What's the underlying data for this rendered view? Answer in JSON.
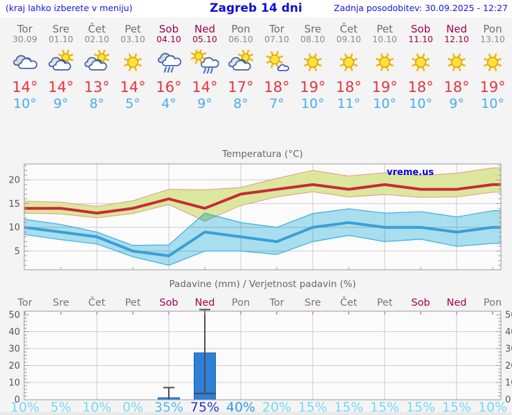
{
  "header": {
    "left_note": "(kraj lahko izberete v meniju)",
    "title": "Zagreb 14 dni",
    "updated": "Zadnja posodobitev: 30.09.2025 - 12:27"
  },
  "colors": {
    "weekend": "#a3024a",
    "weekday": "#6e6e6e",
    "high_temp": "#e4353f",
    "low_temp": "#47acee",
    "max_line": "#cb2838",
    "max_band": "#dbe79c",
    "min_line": "#399fd9",
    "min_band": "#abe2f2",
    "bar": "#2e7fd6",
    "header_blue": "#1414e0"
  },
  "days": [
    {
      "name": "Tor",
      "date": "30.09",
      "weekend": false,
      "icon": "cloudy",
      "high": "14°",
      "low": "10°",
      "prob": "10%",
      "prob_color": "#76d9f6"
    },
    {
      "name": "Sre",
      "date": "01.10",
      "weekend": false,
      "icon": "partly-cloudy",
      "high": "14°",
      "low": "9°",
      "prob": "5%",
      "prob_color": "#76d9f6"
    },
    {
      "name": "Čet",
      "date": "02.10",
      "weekend": false,
      "icon": "partly-cloudy",
      "high": "13°",
      "low": "8°",
      "prob": "10%",
      "prob_color": "#76d9f6"
    },
    {
      "name": "Pet",
      "date": "03.10",
      "weekend": false,
      "icon": "sunny",
      "high": "14°",
      "low": "5°",
      "prob": "0%",
      "prob_color": "#76d9f6"
    },
    {
      "name": "Sob",
      "date": "04.10",
      "weekend": true,
      "icon": "rain",
      "high": "16°",
      "low": "4°",
      "prob": "35%",
      "prob_color": "#4cbcee"
    },
    {
      "name": "Ned",
      "date": "05.10",
      "weekend": true,
      "icon": "sun-rain",
      "high": "14°",
      "low": "9°",
      "prob": "75%",
      "prob_color": "#2534cb"
    },
    {
      "name": "Pon",
      "date": "06.10",
      "weekend": false,
      "icon": "partly-cloudy",
      "high": "17°",
      "low": "8°",
      "prob": "40%",
      "prob_color": "#309ae4"
    },
    {
      "name": "Tor",
      "date": "07.10",
      "weekend": false,
      "icon": "mostly-sunny",
      "high": "18°",
      "low": "7°",
      "prob": "20%",
      "prob_color": "#76d9f6"
    },
    {
      "name": "Sre",
      "date": "08.10",
      "weekend": false,
      "icon": "sunny",
      "high": "19°",
      "low": "10°",
      "prob": "15%",
      "prob_color": "#76d9f6"
    },
    {
      "name": "Čet",
      "date": "09.10",
      "weekend": false,
      "icon": "sunny",
      "high": "18°",
      "low": "11°",
      "prob": "15%",
      "prob_color": "#76d9f6"
    },
    {
      "name": "Pet",
      "date": "10.10",
      "weekend": false,
      "icon": "sunny",
      "high": "19°",
      "low": "10°",
      "prob": "15%",
      "prob_color": "#76d9f6"
    },
    {
      "name": "Sob",
      "date": "11.10",
      "weekend": true,
      "icon": "sunny",
      "high": "18°",
      "low": "10°",
      "prob": "15%",
      "prob_color": "#76d9f6"
    },
    {
      "name": "Ned",
      "date": "12.10",
      "weekend": true,
      "icon": "sunny",
      "high": "18°",
      "low": "9°",
      "prob": "15%",
      "prob_color": "#76d9f6"
    },
    {
      "name": "Pon",
      "date": "13.10",
      "weekend": false,
      "icon": "sunny",
      "high": "19°",
      "low": "10°",
      "prob": "10%",
      "prob_color": "#76d9f6"
    }
  ],
  "chart_data": [
    {
      "type": "line",
      "title": "Temperatura (°C)",
      "watermark": "vreme.us",
      "categories": [
        "Tor 30.09",
        "Sre 01.10",
        "Čet 02.10",
        "Pet 03.10",
        "Sob 04.10",
        "Ned 05.10",
        "Pon 06.10",
        "Tor 07.10",
        "Sre 08.10",
        "Čet 09.10",
        "Pet 10.10",
        "Sob 11.10",
        "Ned 12.10",
        "Pon 13.10"
      ],
      "series": [
        {
          "name": "max_temp",
          "values": [
            14,
            14,
            13,
            14,
            16,
            14,
            17,
            18,
            19,
            18,
            19,
            18,
            18,
            19
          ]
        },
        {
          "name": "min_temp",
          "values": [
            10,
            9,
            8,
            5,
            4,
            9,
            8,
            7,
            10,
            11,
            10,
            10,
            9,
            10
          ]
        },
        {
          "name": "max_band_upper",
          "values": [
            15.5,
            15.3,
            14.4,
            15.6,
            18.0,
            17.9,
            18.4,
            20.3,
            22.0,
            20.8,
            21.5,
            20.9,
            21.4,
            22.5
          ]
        },
        {
          "name": "max_band_lower",
          "values": [
            13.0,
            12.8,
            12.0,
            12.9,
            14.8,
            11.3,
            14.6,
            16.4,
            17.5,
            16.4,
            16.9,
            16.3,
            16.4,
            17.4
          ]
        },
        {
          "name": "min_band_upper",
          "values": [
            11.7,
            10.6,
            9.0,
            6.2,
            6.3,
            13.0,
            11.0,
            10.0,
            12.9,
            13.9,
            13.0,
            13.3,
            12.2,
            13.5
          ]
        },
        {
          "name": "min_band_lower",
          "values": [
            8.5,
            7.4,
            6.5,
            3.8,
            2.0,
            5.0,
            5.0,
            4.3,
            7.0,
            8.3,
            7.0,
            7.5,
            6.0,
            6.6
          ]
        }
      ],
      "ylim": [
        1,
        23.3
      ],
      "yticks": [
        5,
        10,
        15,
        20
      ],
      "grid": true,
      "legend": "none"
    },
    {
      "type": "bar",
      "title": "Padavine (mm) / Verjetnost padavin (%)",
      "categories": [
        "Tor",
        "Sre",
        "Čet",
        "Pet",
        "Sob",
        "Ned",
        "Pon",
        "Tor",
        "Sre",
        "Čet",
        "Pet",
        "Sob",
        "Ned",
        "Pon"
      ],
      "values_mm": [
        0,
        0,
        0,
        0,
        1,
        27.5,
        0,
        0,
        0,
        0,
        0,
        0,
        0,
        0
      ],
      "bars": [
        {
          "day_index": 4,
          "label": "Sob 04.10",
          "mm": 1,
          "whisker_max": 7
        },
        {
          "day_index": 5,
          "label": "Ned 05.10",
          "mm": 27.5,
          "whisker_max": 53,
          "whisker_min": 3.5
        }
      ],
      "probabilities_pct": [
        10,
        5,
        10,
        0,
        35,
        75,
        40,
        20,
        15,
        15,
        15,
        15,
        15,
        10
      ],
      "ylim": [
        0,
        52
      ],
      "yticks": [
        0,
        10,
        20,
        30,
        40,
        50
      ],
      "grid": true,
      "legend": "none"
    }
  ]
}
